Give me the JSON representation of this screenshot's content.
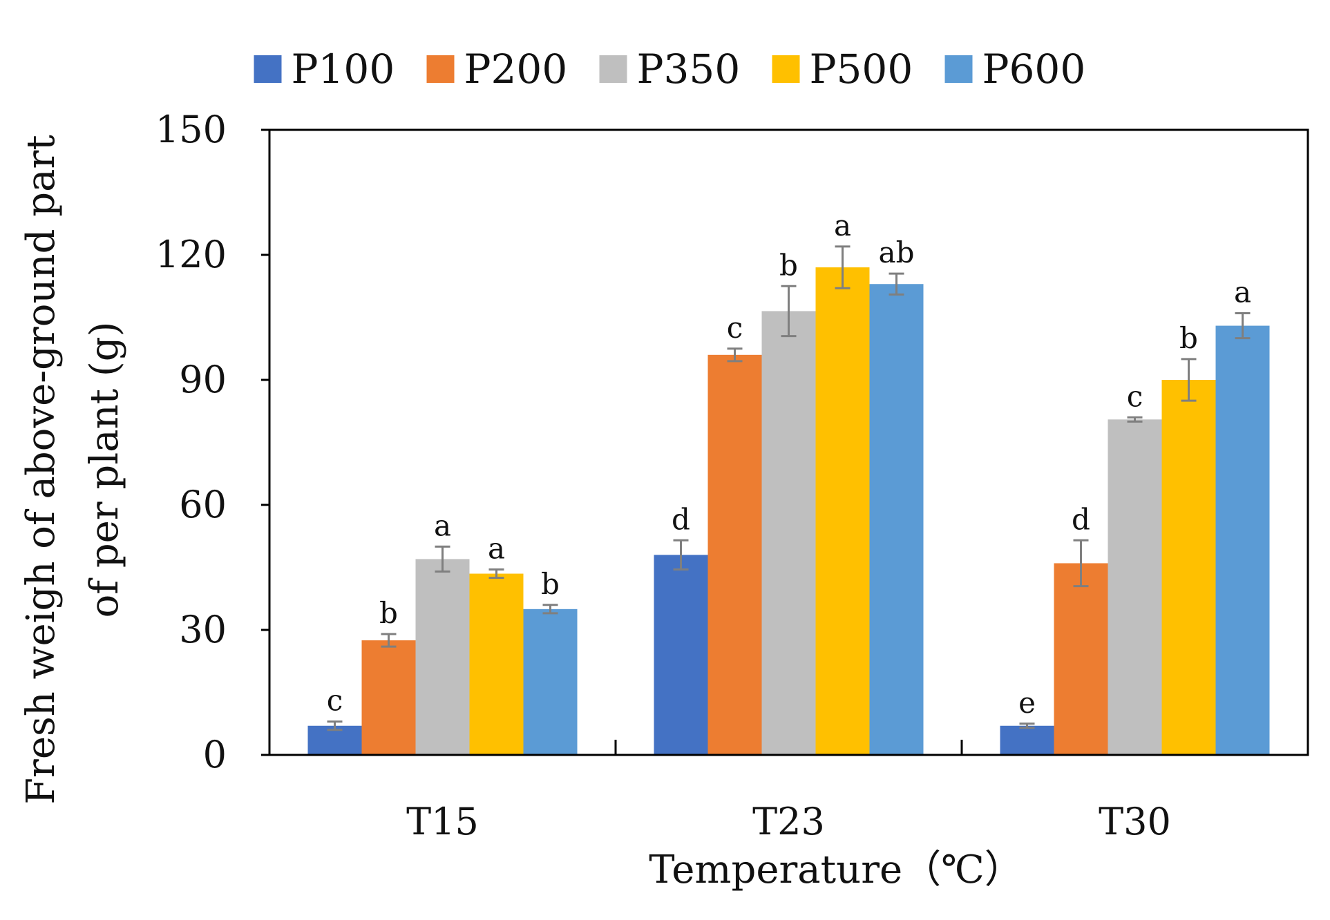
{
  "chart_data": {
    "type": "bar",
    "title": "",
    "xlabel": "Temperature（℃）",
    "ylabel_lines": [
      "Fresh weigh of above-ground part",
      "of per plant (g)"
    ],
    "categories": [
      "T15",
      "T23",
      "T30"
    ],
    "ylim": [
      0,
      150
    ],
    "yticks": [
      0,
      30,
      60,
      90,
      120,
      150
    ],
    "grid": false,
    "legend_position": "top",
    "series": [
      {
        "name": "P100",
        "color": "#4472C4",
        "values": [
          7,
          48,
          7
        ],
        "errors": [
          1,
          3.5,
          0.5
        ],
        "letters": [
          "c",
          "d",
          "e"
        ]
      },
      {
        "name": "P200",
        "color": "#ED7D31",
        "values": [
          27.5,
          96,
          46
        ],
        "errors": [
          1.5,
          1.5,
          5.5
        ],
        "letters": [
          "b",
          "c",
          "d"
        ]
      },
      {
        "name": "P350",
        "color": "#BFBFBF",
        "values": [
          47,
          106.5,
          80.5
        ],
        "errors": [
          3,
          6,
          0.5
        ],
        "letters": [
          "a",
          "b",
          "c"
        ]
      },
      {
        "name": "P500",
        "color": "#FFC000",
        "values": [
          43.5,
          117,
          90
        ],
        "errors": [
          1,
          5,
          5
        ],
        "letters": [
          "a",
          "a",
          "b"
        ]
      },
      {
        "name": "P600",
        "color": "#5B9BD5",
        "values": [
          35,
          113,
          103
        ],
        "errors": [
          1,
          2.5,
          3
        ],
        "letters": [
          "b",
          "ab",
          "a"
        ]
      }
    ]
  }
}
